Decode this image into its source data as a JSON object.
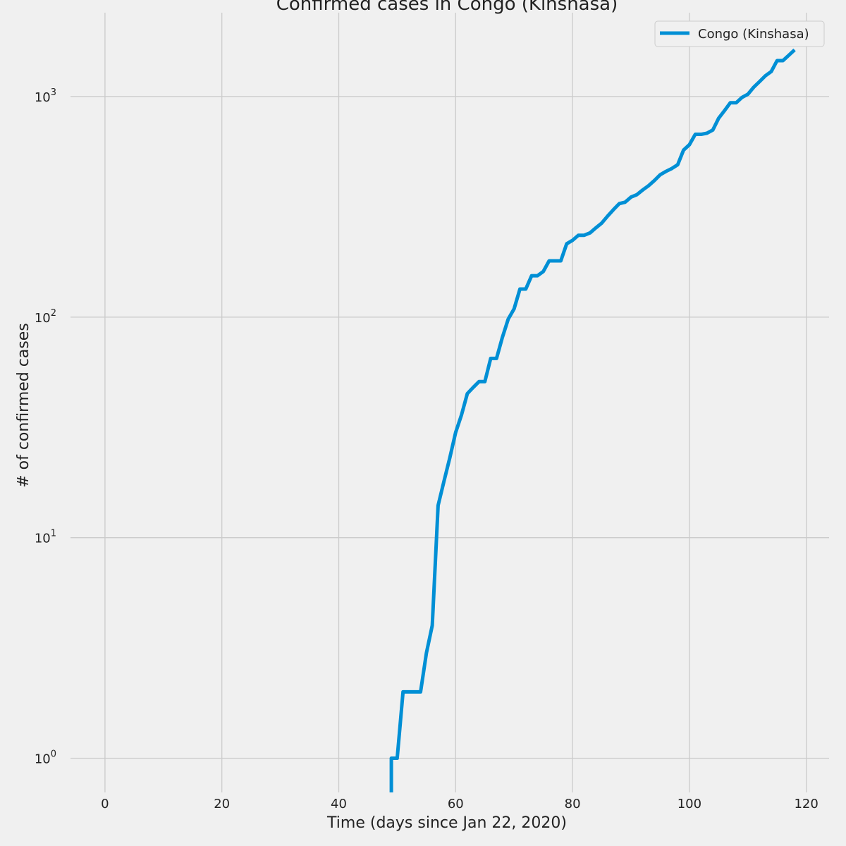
{
  "chart_data": {
    "type": "line",
    "title": "Confirmed cases in Congo (Kinshasa)",
    "xlabel": "Time (days since Jan 22, 2020)",
    "ylabel": "# of confirmed cases",
    "xlim": [
      -5.9,
      123.9
    ],
    "ylim": [
      0.7,
      2400
    ],
    "yscale": "log",
    "grid": true,
    "legend_position": "top-right",
    "x_ticks": [
      0,
      20,
      40,
      60,
      80,
      100,
      120
    ],
    "y_ticks": [
      1,
      10,
      100,
      1000
    ],
    "y_tick_labels": [
      {
        "base": "10",
        "exp": "0"
      },
      {
        "base": "10",
        "exp": "1"
      },
      {
        "base": "10",
        "exp": "2"
      },
      {
        "base": "10",
        "exp": "3"
      }
    ],
    "series": [
      {
        "name": "Congo (Kinshasa)",
        "color": "#008fd5",
        "x": [
          49,
          49,
          50,
          51,
          52,
          53,
          54,
          55,
          56,
          57,
          58,
          59,
          60,
          61,
          62,
          63,
          64,
          65,
          66,
          67,
          68,
          69,
          70,
          71,
          72,
          73,
          74,
          75,
          76,
          77,
          78,
          79,
          80,
          81,
          82,
          83,
          84,
          85,
          86,
          87,
          88,
          89,
          90,
          91,
          92,
          93,
          94,
          95,
          96,
          97,
          98,
          99,
          100,
          101,
          102,
          103,
          104,
          105,
          106,
          107,
          108,
          109,
          110,
          111,
          112,
          113,
          114,
          115,
          116,
          117,
          118
        ],
        "y": [
          0.7,
          1,
          1,
          2,
          2,
          2,
          2,
          3,
          4,
          14,
          18,
          23,
          30,
          36,
          45,
          48,
          51,
          51,
          65,
          65,
          81,
          98,
          109,
          134,
          134,
          154,
          154,
          161,
          180,
          180,
          180,
          215,
          223,
          235,
          235,
          241,
          254,
          267,
          287,
          307,
          327,
          332,
          350,
          359,
          377,
          394,
          416,
          442,
          458,
          472,
          491,
          572,
          605,
          674,
          674,
          682,
          705,
          797,
          863,
          937,
          937,
          991,
          1024,
          1102,
          1169,
          1242,
          1298,
          1455,
          1455,
          1538,
          1629
        ]
      }
    ]
  }
}
